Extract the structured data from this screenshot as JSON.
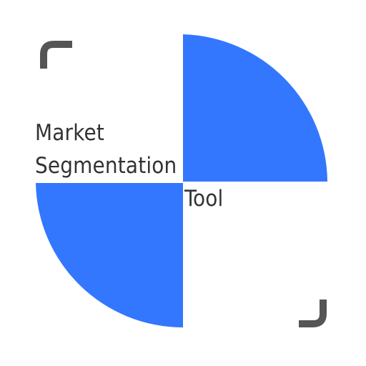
{
  "logo": {
    "title_line_1": "Market",
    "title_line_2": "Segmentation",
    "title_line_3": "Tool",
    "accent_color": "#3377ff",
    "bracket_color": "#555555",
    "text_color": "#333333",
    "icon": "quarter-circle-segments-icon"
  }
}
